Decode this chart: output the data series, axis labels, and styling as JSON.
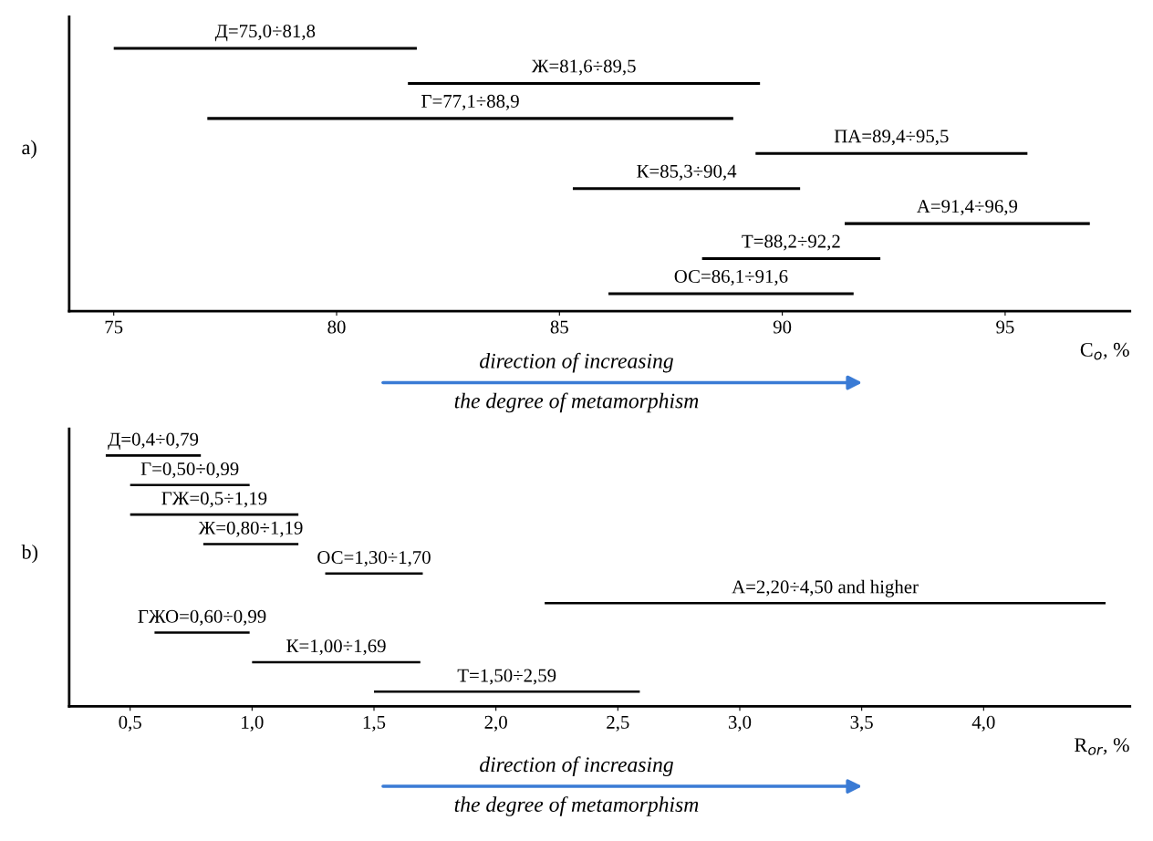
{
  "chart_data": [
    {
      "type": "bar",
      "orientation": "horizontal",
      "tick_labels": "x",
      "xlabel": "C$_{o}$, %",
      "categories": [
        "Д=75,0÷81,8",
        "Ж=81,6÷89,5",
        "Г=77,1÷88,9",
        "ПА=89,4÷95,5",
        "К=85,3÷90,4",
        "А=91,4÷96,9",
        "Т=88,2÷92,2",
        "ОС=86,1÷91,6"
      ],
      "base": [
        75.0,
        81.6,
        77.1,
        89.4,
        85.3,
        91.4,
        88.2,
        86.1
      ],
      "values": [
        6.8,
        7.9,
        11.8,
        6.1,
        5.1,
        5.5,
        4.0,
        5.5
      ],
      "color": "#000000",
      "xlim": [
        74,
        97.8
      ],
      "xticks": [
        75,
        80,
        85,
        90,
        95
      ],
      "annotations": [
        "a)",
        "direction of increasing",
        "the degree of metamorphism"
      ]
    },
    {
      "type": "bar",
      "orientation": "horizontal",
      "tick_labels": "x",
      "xlabel": "R$_{or}$, %",
      "categories": [
        "Д=0,4÷0,79",
        "Г=0,50÷0,99",
        "ГЖ=0,5÷1,19",
        "Ж=0,80÷1,19",
        "ОС=1,30÷1,70",
        "А=2,20÷4,50 and higher",
        "ГЖО=0,60÷0,99",
        "К=1,00÷1,69",
        "Т=1,50÷2,59"
      ],
      "base": [
        0.4,
        0.5,
        0.5,
        0.8,
        1.3,
        2.2,
        0.6,
        1.0,
        1.5
      ],
      "values": [
        0.39,
        0.49,
        0.69,
        0.39,
        0.4,
        2.3,
        0.39,
        0.69,
        1.09
      ],
      "color": "#000000",
      "xlim": [
        0.25,
        4.6
      ],
      "xticks": [
        {
          "value": 0.5,
          "label": "0,5"
        },
        {
          "value": 1.0,
          "label": "1,0"
        },
        {
          "value": 1.5,
          "label": "1,5"
        },
        {
          "value": 2.0,
          "label": "2,0"
        },
        {
          "value": 2.5,
          "label": "2,5"
        },
        {
          "value": 3.0,
          "label": "3,0"
        },
        {
          "value": 3.5,
          "label": "3,5"
        },
        {
          "value": 4.0,
          "label": "4,0"
        }
      ],
      "annotations": [
        "b)",
        "direction of increasing",
        "the degree of metamorphism"
      ]
    }
  ]
}
